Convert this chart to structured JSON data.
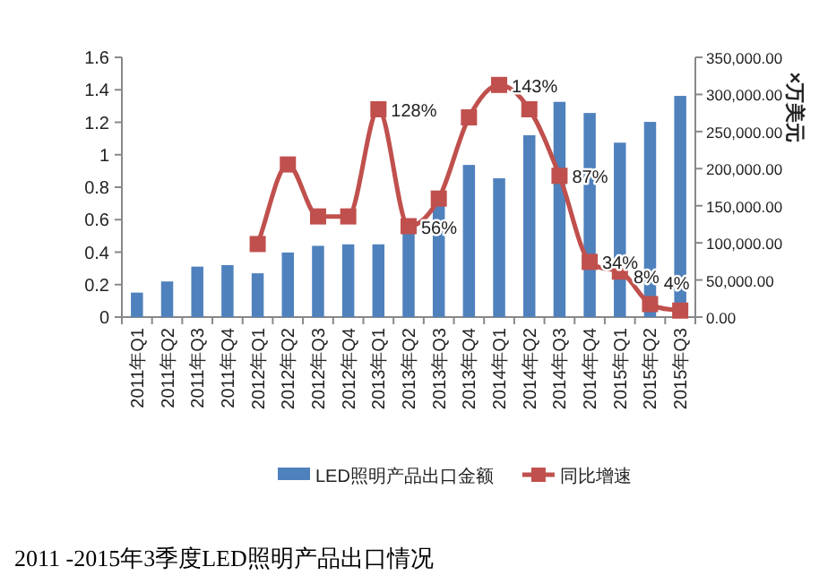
{
  "chart_data": {
    "type": "bar",
    "categories": [
      "2011年Q1",
      "2011年Q2",
      "2011年Q3",
      "2011年Q4",
      "2012年Q1",
      "2012年Q2",
      "2012年Q3",
      "2012年Q4",
      "2013年Q1",
      "2013年Q2",
      "2013年Q3",
      "2013年Q4",
      "2014年Q1",
      "2014年Q2",
      "2014年Q3",
      "2014年Q4",
      "2015年Q1",
      "2015年Q2",
      "2015年Q3"
    ],
    "series": [
      {
        "name": "LED照明产品出口金额",
        "axis": "y2",
        "color": "#4f81bd",
        "values": [
          33000,
          48000,
          68000,
          70000,
          59000,
          87000,
          96000,
          98000,
          98000,
          114000,
          150000,
          205000,
          187000,
          245000,
          290000,
          275000,
          235000,
          263000,
          298000
        ]
      },
      {
        "name": "同比增速",
        "type": "line",
        "color": "#c0504d",
        "values": [
          null,
          null,
          null,
          null,
          0.45,
          0.94,
          0.62,
          0.62,
          1.28,
          0.56,
          0.73,
          1.23,
          1.43,
          1.28,
          0.87,
          0.34,
          0.28,
          0.08,
          0.04
        ],
        "value_labels": [
          null,
          null,
          null,
          null,
          null,
          null,
          null,
          null,
          "128%",
          "56%",
          null,
          null,
          "143%",
          null,
          "87%",
          "34%",
          null,
          "8%",
          "4%"
        ]
      }
    ],
    "ylim": [
      0,
      1.6
    ],
    "yticks": [
      0,
      0.2,
      0.4,
      0.6,
      0.8,
      1,
      1.2,
      1.4,
      1.6
    ],
    "y2lim": [
      0,
      350000
    ],
    "y2ticks": [
      {
        "value": 0,
        "label": "0.00"
      },
      {
        "value": 50000,
        "label": "50,000.00"
      },
      {
        "value": 100000,
        "label": "100,000.00"
      },
      {
        "value": 150000,
        "label": "150,000.00"
      },
      {
        "value": 200000,
        "label": "200,000.00"
      },
      {
        "value": 250000,
        "label": "250,000.00"
      },
      {
        "value": 300000,
        "label": "300,000.00"
      },
      {
        "value": 350000,
        "label": "350,000.00"
      }
    ],
    "y2label": "×万美元",
    "legend": "bottom",
    "marker": "square",
    "annotations": [
      "2011 -2015年3季度LED照明产品出口情况"
    ]
  }
}
